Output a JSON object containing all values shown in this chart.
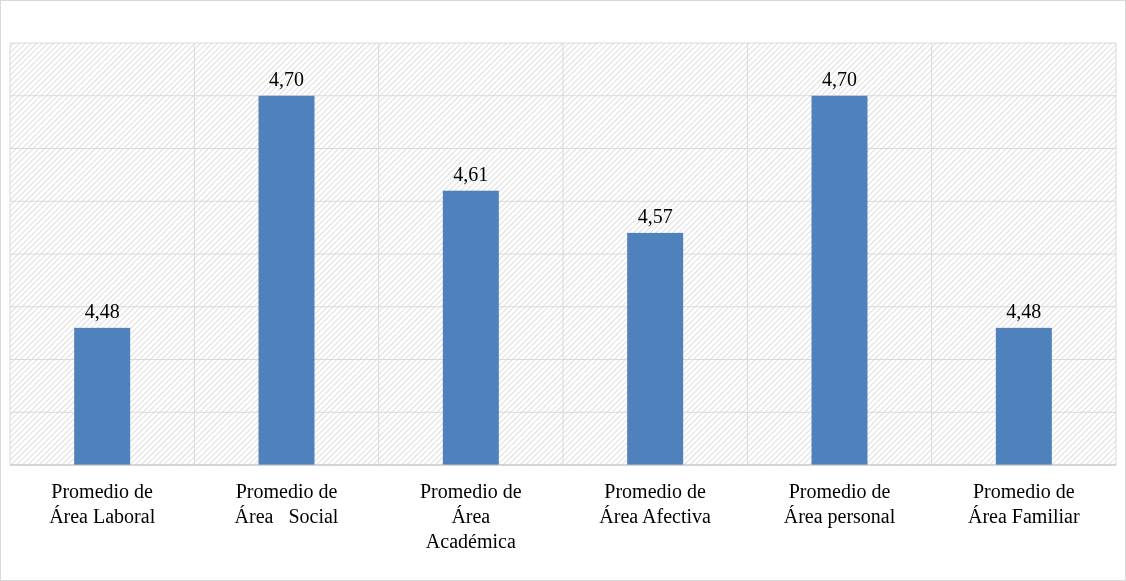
{
  "chart_data": {
    "type": "bar",
    "categories": [
      "Promedio de\nÁrea Laboral",
      "Promedio de\nÁrea   Social",
      "Promedio de\nÁrea\nAcadémica",
      "Promedio de\nÁrea Afectiva",
      "Promedio de\nÁrea personal",
      "Promedio de\nÁrea Familiar"
    ],
    "values": [
      4.48,
      4.7,
      4.61,
      4.57,
      4.7,
      4.48
    ],
    "value_labels": [
      "4,48",
      "4,70",
      "4,61",
      "4,57",
      "4,70",
      "4,48"
    ],
    "color": "#4f81bd",
    "ylim": [
      4.35,
      4.75
    ],
    "yticks": [
      {
        "value": 4.35,
        "label": null
      },
      {
        "value": 4.4,
        "label": null
      },
      {
        "value": 4.45,
        "label": null
      },
      {
        "value": 4.5,
        "label": null
      },
      {
        "value": 4.55,
        "label": null
      },
      {
        "value": 4.6,
        "label": null
      },
      {
        "value": 4.65,
        "label": null
      },
      {
        "value": 4.7,
        "label": null
      },
      {
        "value": 4.75,
        "label": null
      }
    ],
    "tick_labels": "x",
    "grid": true
  }
}
